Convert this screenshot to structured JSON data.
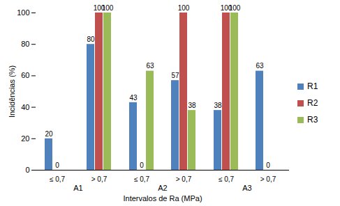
{
  "chart_data": {
    "type": "bar",
    "x_label": "Intervalos de Ra (MPa)",
    "y_label": "Incidências (%)",
    "groups": [
      {
        "name": "A1",
        "categories": [
          "≤ 0,7",
          "> 0,7"
        ]
      },
      {
        "name": "A2",
        "categories": [
          "≤ 0,7",
          "> 0,7"
        ]
      },
      {
        "name": "A3",
        "categories": [
          "≤ 0,7",
          "> 0,7"
        ]
      }
    ],
    "series": [
      {
        "name": "R1",
        "color": "#4f81bd",
        "values": [
          20,
          80,
          43,
          57,
          38,
          63
        ]
      },
      {
        "name": "R2",
        "color": "#c0504d",
        "values": [
          0,
          100,
          0,
          100,
          100,
          0
        ]
      },
      {
        "name": "R3",
        "color": "#9bbb59",
        "values": [
          null,
          100,
          63,
          38,
          100,
          null
        ]
      }
    ],
    "ylim": [
      0,
      100
    ],
    "yticks": [
      0,
      20,
      40,
      60,
      80,
      100
    ],
    "grid": false,
    "legend": "right",
    "data_labels": true
  }
}
